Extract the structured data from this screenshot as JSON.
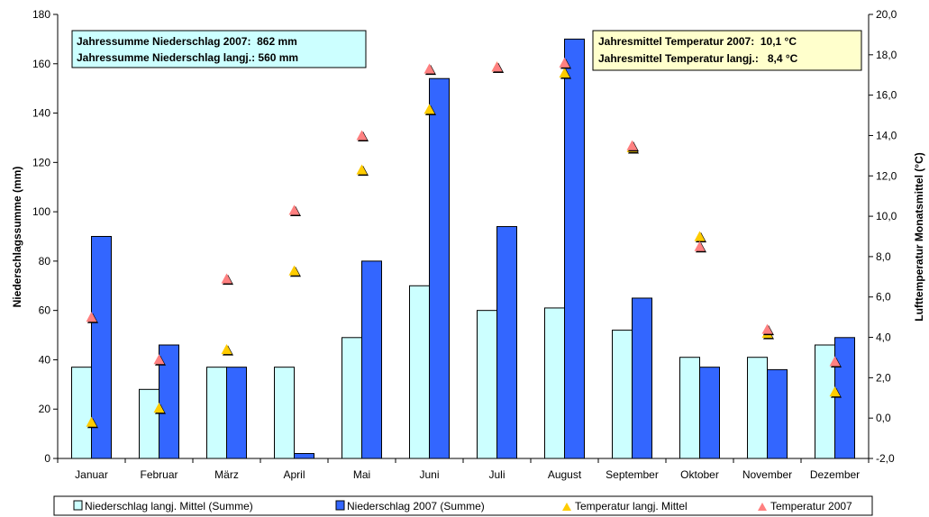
{
  "chart_data": {
    "type": "bar",
    "categories": [
      "Januar",
      "Februar",
      "März",
      "April",
      "Mai",
      "Juni",
      "Juli",
      "August",
      "September",
      "Oktober",
      "November",
      "Dezember"
    ],
    "series": [
      {
        "name": "Niederschlag langj. Mittel (Summe)",
        "kind": "bar",
        "axis": "left",
        "color": "#CCFFFF",
        "values": [
          37,
          28,
          37,
          37,
          49,
          70,
          60,
          61,
          52,
          41,
          41,
          46
        ]
      },
      {
        "name": "Niederschlag 2007 (Summe)",
        "kind": "bar",
        "axis": "left",
        "color": "#3366FF",
        "values": [
          90,
          46,
          37,
          2,
          80,
          154,
          94,
          170,
          65,
          37,
          36,
          49
        ]
      },
      {
        "name": "Temperatur langj. Mittel",
        "kind": "marker",
        "axis": "right",
        "color": "#FFCC00",
        "values": [
          -0.2,
          0.5,
          3.4,
          7.3,
          12.3,
          15.3,
          17.4,
          17.1,
          13.4,
          9.0,
          4.2,
          1.3
        ]
      },
      {
        "name": "Temperatur 2007",
        "kind": "marker",
        "axis": "right",
        "color": "#FF8080",
        "values": [
          5.0,
          2.9,
          6.9,
          10.3,
          14.0,
          17.3,
          17.4,
          17.6,
          13.5,
          8.5,
          4.4,
          2.8
        ]
      }
    ],
    "ylabel": "Niederschlagssumme (mm)",
    "y2label": "Lufttemperatur Monatsmittel (°C)",
    "ylim": [
      0,
      180
    ],
    "yticks": [
      "0",
      "20",
      "40",
      "60",
      "80",
      "100",
      "120",
      "140",
      "160",
      "180"
    ],
    "y2lim": [
      -2,
      20
    ],
    "y2ticks": [
      "-2,0",
      "0,0",
      "2,0",
      "4,0",
      "6,0",
      "8,0",
      "10,0",
      "12,0",
      "14,0",
      "16,0",
      "18,0",
      "20,0"
    ],
    "grid": false,
    "legend_position": "bottom"
  },
  "annotations": {
    "precip": {
      "line1": "Jahressumme Niederschlag 2007:  862 mm",
      "line2": "Jahressumme Niederschlag langj.: 560 mm",
      "color": "#CCFFFF"
    },
    "temp": {
      "line1": "Jahresmittel Temperatur 2007:  10,1 °C",
      "line2": "Jahresmittel Temperatur langj.:   8,4 °C",
      "color": "#FFFFCC"
    }
  }
}
